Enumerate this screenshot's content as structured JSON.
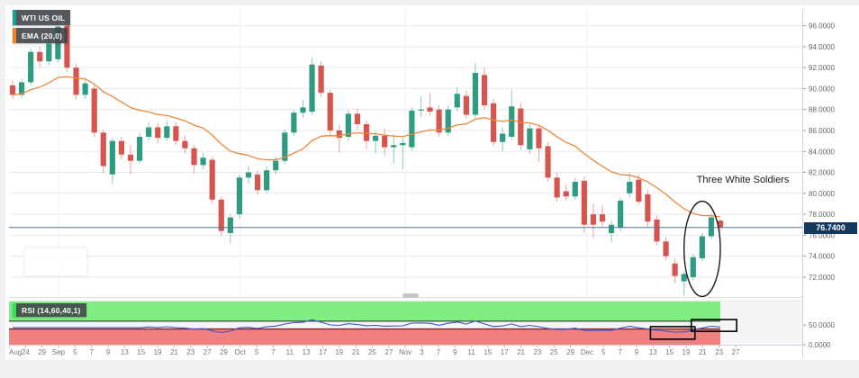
{
  "chart": {
    "symbol_label": "WTI US OIL",
    "ema_label": "EMA (20,0)",
    "rsi_label": "RSI (14,60,40,1)",
    "annotation_label": "Three White Soldiers",
    "last_price": "76.7400",
    "colors": {
      "up_candle": "#2e9c81",
      "down_candle": "#d6564f",
      "ema_line": "#ed853a",
      "rsi_line": "#3b55cf",
      "rsi_upper_band": "#80ee80",
      "rsi_lower_band": "#f38080",
      "rsi_lower_band_edge": "#8b2020",
      "price_line": "#51749c",
      "badge_bg": "#14395f",
      "symbol_accent": "#18a096",
      "ema_accent": "#f08222",
      "rsi_accent": "#35e05a",
      "grid": "#e9e9ec",
      "axis_text": "#666666",
      "annotation_ink": "#1a1a1a"
    }
  },
  "chart_data": {
    "type": "candlestick",
    "title": "WTI US OIL",
    "indicators": [
      {
        "name": "EMA",
        "params": [
          20,
          0
        ]
      },
      {
        "name": "RSI",
        "params": [
          14,
          60,
          40,
          1
        ]
      }
    ],
    "price_axis": {
      "ylim": [
        70.1,
        97.6
      ],
      "tick_labels": [
        "96.0000",
        "94.0000",
        "92.0000",
        "90.0000",
        "88.0000",
        "86.0000",
        "84.0000",
        "82.0000",
        "80.0000",
        "78.0000",
        "76.0000",
        "74.0000",
        "72.0000"
      ],
      "tick_values": [
        96,
        94,
        92,
        90,
        88,
        86,
        84,
        82,
        80,
        78,
        76,
        74,
        72
      ]
    },
    "time_axis_ticks": [
      "Aug",
      "24",
      "29",
      "Sep",
      "5",
      "7",
      "9",
      "13",
      "15",
      "19",
      "21",
      "23",
      "27",
      "29",
      "Oct",
      "5",
      "7",
      "11",
      "13",
      "17",
      "19",
      "21",
      "25",
      "27",
      "Nov",
      "3",
      "7",
      "9",
      "11",
      "15",
      "17",
      "21",
      "23",
      "25",
      "29",
      "Dec",
      "5",
      "7",
      "9",
      "13",
      "15",
      "19",
      "21",
      "23",
      "27"
    ],
    "last_price_value": 76.74,
    "candles_ohlc": [
      [
        90.3,
        90.8,
        89.0,
        89.4
      ],
      [
        89.4,
        90.9,
        89.1,
        90.6
      ],
      [
        90.6,
        93.8,
        90.3,
        93.5
      ],
      [
        93.5,
        94.0,
        92.0,
        92.6
      ],
      [
        92.6,
        94.8,
        92.2,
        94.3
      ],
      [
        92.8,
        96.3,
        92.5,
        95.9
      ],
      [
        96.0,
        96.7,
        91.6,
        92.0
      ],
      [
        92.0,
        92.4,
        89.0,
        89.4
      ],
      [
        89.4,
        90.9,
        89.0,
        90.5
      ],
      [
        90.0,
        90.3,
        85.4,
        85.8
      ],
      [
        85.8,
        86.1,
        81.9,
        82.6
      ],
      [
        81.8,
        85.3,
        80.9,
        85.0
      ],
      [
        85.0,
        85.4,
        83.2,
        83.7
      ],
      [
        83.7,
        84.6,
        81.8,
        83.1
      ],
      [
        83.1,
        85.8,
        82.8,
        85.4
      ],
      [
        85.4,
        86.8,
        85.0,
        86.3
      ],
      [
        86.3,
        86.7,
        84.8,
        85.3
      ],
      [
        85.3,
        87.0,
        85.0,
        86.4
      ],
      [
        86.4,
        86.8,
        84.6,
        85.0
      ],
      [
        85.0,
        85.5,
        83.8,
        84.3
      ],
      [
        84.3,
        84.6,
        81.9,
        82.7
      ],
      [
        82.7,
        83.9,
        82.3,
        83.4
      ],
      [
        83.2,
        83.5,
        79.0,
        79.4
      ],
      [
        79.4,
        79.7,
        75.9,
        76.4
      ],
      [
        76.2,
        78.0,
        75.2,
        77.7
      ],
      [
        78.0,
        81.8,
        77.6,
        81.5
      ],
      [
        81.5,
        82.6,
        80.9,
        82.0
      ],
      [
        81.8,
        82.2,
        79.9,
        80.3
      ],
      [
        80.3,
        82.6,
        80.0,
        82.2
      ],
      [
        82.2,
        83.5,
        81.8,
        83.1
      ],
      [
        83.1,
        86.1,
        82.8,
        85.8
      ],
      [
        85.8,
        88.0,
        85.5,
        87.7
      ],
      [
        87.7,
        88.9,
        87.2,
        88.2
      ],
      [
        87.8,
        93.0,
        87.5,
        92.3
      ],
      [
        92.2,
        92.6,
        89.2,
        89.6
      ],
      [
        89.6,
        89.9,
        85.6,
        86.0
      ],
      [
        86.0,
        86.5,
        83.9,
        85.3
      ],
      [
        85.4,
        87.9,
        85.0,
        87.6
      ],
      [
        87.6,
        88.1,
        86.1,
        86.6
      ],
      [
        86.6,
        87.0,
        84.2,
        85.0
      ],
      [
        85.0,
        85.9,
        83.8,
        85.5
      ],
      [
        85.5,
        86.2,
        83.6,
        84.4
      ],
      [
        84.4,
        85.6,
        82.9,
        84.6
      ],
      [
        84.6,
        85.3,
        82.3,
        84.8
      ],
      [
        84.4,
        88.2,
        84.1,
        87.9
      ],
      [
        87.9,
        89.3,
        87.3,
        88.0
      ],
      [
        88.2,
        89.6,
        87.4,
        87.8
      ],
      [
        88.0,
        88.4,
        85.4,
        85.8
      ],
      [
        85.8,
        88.4,
        85.5,
        88.0
      ],
      [
        88.2,
        90.1,
        87.8,
        89.5
      ],
      [
        89.3,
        89.8,
        87.1,
        87.5
      ],
      [
        87.5,
        92.4,
        87.2,
        91.5
      ],
      [
        91.3,
        92.0,
        88.0,
        88.4
      ],
      [
        88.6,
        89.0,
        84.5,
        84.9
      ],
      [
        84.9,
        86.3,
        84.0,
        85.7
      ],
      [
        85.4,
        89.9,
        85.1,
        88.3
      ],
      [
        88.1,
        88.6,
        84.2,
        84.6
      ],
      [
        84.2,
        86.6,
        83.8,
        86.2
      ],
      [
        86.2,
        86.5,
        83.0,
        84.3
      ],
      [
        84.5,
        84.9,
        81.1,
        81.5
      ],
      [
        81.5,
        82.0,
        79.2,
        79.6
      ],
      [
        80.2,
        80.8,
        79.3,
        79.7
      ],
      [
        79.7,
        81.5,
        79.4,
        81.1
      ],
      [
        81.2,
        81.6,
        76.2,
        77.0
      ],
      [
        78.0,
        79.0,
        75.7,
        77.0
      ],
      [
        78.0,
        78.9,
        76.8,
        77.3
      ],
      [
        76.2,
        77.4,
        75.3,
        77.0
      ],
      [
        76.7,
        79.6,
        76.4,
        79.3
      ],
      [
        80.0,
        82.0,
        79.6,
        81.1
      ],
      [
        81.3,
        81.8,
        78.9,
        79.2
      ],
      [
        79.9,
        80.3,
        76.8,
        77.3
      ],
      [
        77.5,
        77.9,
        75.0,
        75.4
      ],
      [
        75.4,
        75.8,
        73.6,
        74.0
      ],
      [
        73.3,
        73.8,
        71.4,
        72.1
      ],
      [
        71.6,
        72.6,
        70.2,
        72.3
      ],
      [
        72.0,
        74.2,
        71.7,
        73.9
      ],
      [
        73.8,
        76.2,
        73.5,
        75.9
      ],
      [
        75.9,
        78.0,
        75.6,
        77.7
      ],
      [
        77.4,
        77.6,
        76.4,
        76.74
      ]
    ],
    "rsi_pane": {
      "value_range": [
        0,
        110
      ],
      "axis_labels": [
        {
          "value": 50,
          "label": "50.0000"
        },
        {
          "value": 0,
          "label": "0.0000"
        }
      ],
      "upper_band": [
        60,
        110
      ],
      "lower_band": [
        0,
        40
      ]
    },
    "annotations": {
      "text": {
        "label": "Three White Soldiers",
        "candle": 76.8,
        "price": 81.3
      },
      "ellipse": {
        "center_candle": 76.0,
        "center_price": 74.7,
        "rx_candles": 2.0,
        "ry_price": 4.55
      },
      "rsi_boxes": [
        {
          "i1": 70.3,
          "i2": 75.2,
          "v1": 14,
          "v2": 46
        },
        {
          "i1": 74.8,
          "i2": 79.8,
          "v1": 34,
          "v2": 64
        }
      ]
    }
  }
}
